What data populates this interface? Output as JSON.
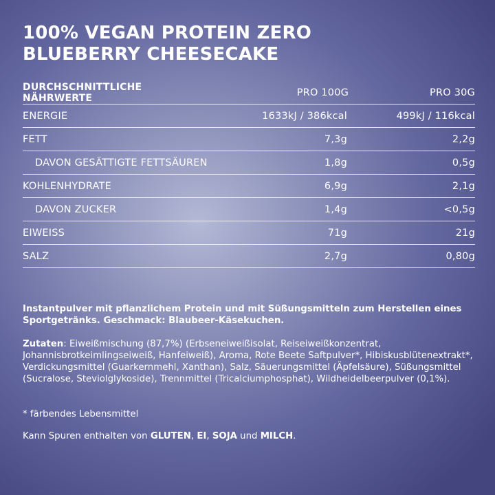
{
  "title": {
    "line1": "100% VEGAN PROTEIN ZERO",
    "line2": "BLUEBERRY CHEESECAKE"
  },
  "nutrition": {
    "header": {
      "label": "DURCHSCHNITTLICHE NÄHRWERTE",
      "col1": "PRO 100G",
      "col2": "PRO 30G"
    },
    "rows": [
      {
        "label": "ENERGIE",
        "per100": "1633kJ / 386kcal",
        "per30": "499kJ / 116kcal"
      },
      {
        "label": "FETT",
        "per100": "7,3g",
        "per30": "2,2g"
      },
      {
        "label": "DAVON GESÄTTIGTE FETTSÄUREN",
        "per100": "1,8g",
        "per30": "0,5g"
      },
      {
        "label": "KOHLENHYDRATE",
        "per100": "6,9g",
        "per30": "2,1g"
      },
      {
        "label": "DAVON ZUCKER",
        "per100": "1,4g",
        "per30": "<0,5g"
      },
      {
        "label": "EIWEISS",
        "per100": "71g",
        "per30": "21g"
      },
      {
        "label": "SALZ",
        "per100": "2,7g",
        "per30": "0,80g"
      }
    ]
  },
  "description": "Instantpulver mit pflanzlichem Protein und mit Süßungsmitteln zum Herstellen eines Sportgetränks. Geschmack: Blaubeer-Käsekuchen.",
  "ingredients": {
    "label": "Zutaten",
    "text": ": Eiweißmischung (87,7%) (Erbseneiweißisolat, Reiseiweißkonzentrat, Johannisbrotkeimlingseiweiß, Hanfeiweiß), Aroma, Rote Beete Saftpulver*, Hibis­kusblütenextrakt*, Verdickungsmittel (Guarkernmehl, Xanthan), Salz, Säuerungs­mittel (Äpfelsäure), Süßungsmittel (Sucralose, Steviolglykoside), Trennmittel (Tricalciumphosphat), Wildheidelbeerpulver (0,1%)."
  },
  "footnote": "* färbendes Lebensmittel",
  "allergens": {
    "prefix": "Kann Spuren enthalten von ",
    "a1": "GLUTEN",
    "sep1": ", ",
    "a2": "EI",
    "sep2": ", ",
    "a3": "SOJA",
    "sep3": " und ",
    "a4": "MILCH",
    "suffix": "."
  }
}
